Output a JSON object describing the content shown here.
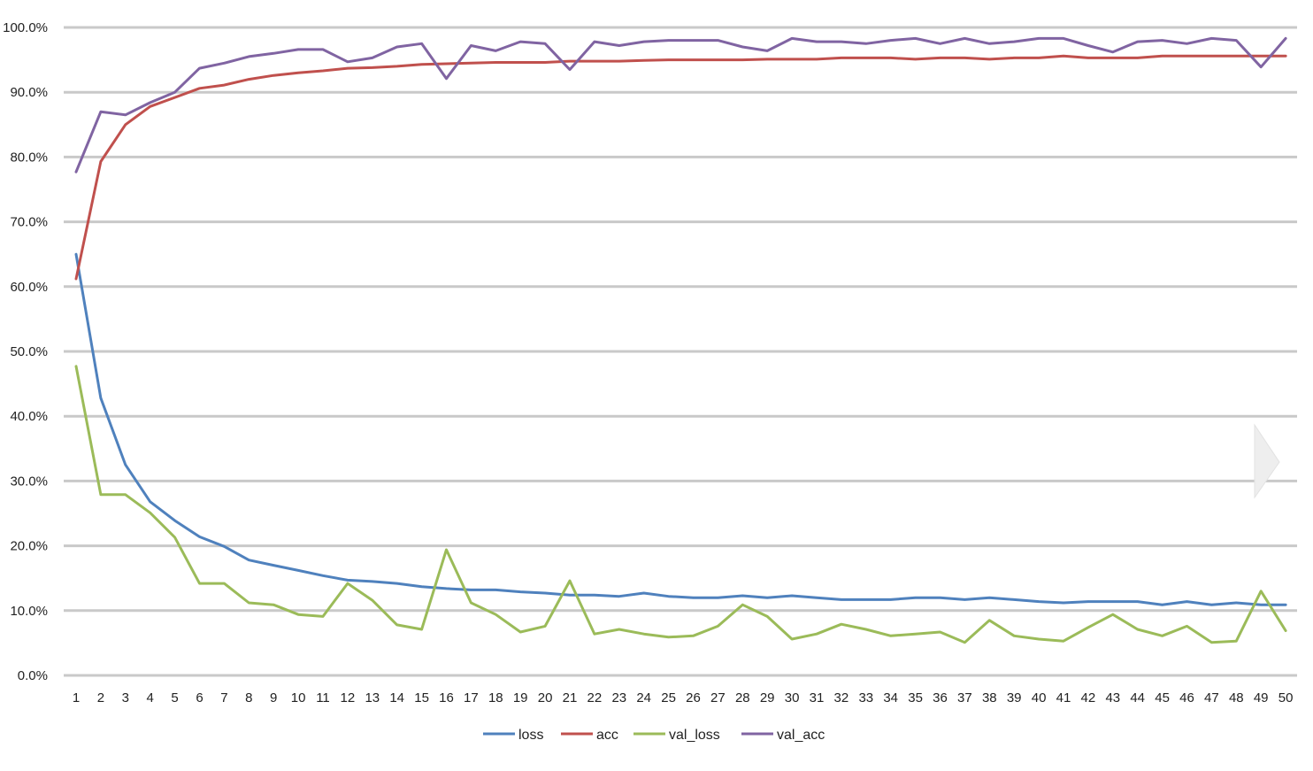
{
  "chart_data": {
    "type": "line",
    "title": "",
    "xlabel": "",
    "ylabel": "",
    "x": [
      1,
      2,
      3,
      4,
      5,
      6,
      7,
      8,
      9,
      10,
      11,
      12,
      13,
      14,
      15,
      16,
      17,
      18,
      19,
      20,
      21,
      22,
      23,
      24,
      25,
      26,
      27,
      28,
      29,
      30,
      31,
      32,
      33,
      34,
      35,
      36,
      37,
      38,
      39,
      40,
      41,
      42,
      43,
      44,
      45,
      46,
      47,
      48,
      49,
      50
    ],
    "ylim": [
      0,
      100
    ],
    "y_ticks": [
      0,
      10,
      20,
      30,
      40,
      50,
      60,
      70,
      80,
      90,
      100
    ],
    "y_tick_labels": [
      "0.0%",
      "10.0%",
      "20.0%",
      "30.0%",
      "40.0%",
      "50.0%",
      "60.0%",
      "70.0%",
      "80.0%",
      "90.0%",
      "100.0%"
    ],
    "grid": true,
    "legend_position": "bottom",
    "series": [
      {
        "name": "loss",
        "color": "#4f81bd",
        "values": [
          65.0,
          42.8,
          32.5,
          26.8,
          23.9,
          21.4,
          19.9,
          17.8,
          17.0,
          16.2,
          15.4,
          14.7,
          14.5,
          14.2,
          13.7,
          13.4,
          13.2,
          13.2,
          12.9,
          12.7,
          12.4,
          12.4,
          12.2,
          12.7,
          12.2,
          12.0,
          12.0,
          12.3,
          12.0,
          12.3,
          12.0,
          11.7,
          11.7,
          11.7,
          12.0,
          12.0,
          11.7,
          12.0,
          11.7,
          11.4,
          11.2,
          11.4,
          11.4,
          11.4,
          10.9,
          11.4,
          10.9,
          11.2,
          10.9,
          10.9
        ]
      },
      {
        "name": "acc",
        "color": "#c0504d",
        "values": [
          61.2,
          79.3,
          85.0,
          87.8,
          89.2,
          90.6,
          91.1,
          92.0,
          92.6,
          93.0,
          93.3,
          93.7,
          93.8,
          94.0,
          94.3,
          94.4,
          94.5,
          94.6,
          94.6,
          94.6,
          94.8,
          94.8,
          94.8,
          94.9,
          95.0,
          95.0,
          95.0,
          95.0,
          95.1,
          95.1,
          95.1,
          95.3,
          95.3,
          95.3,
          95.1,
          95.3,
          95.3,
          95.1,
          95.3,
          95.3,
          95.6,
          95.3,
          95.3,
          95.3,
          95.6,
          95.6,
          95.6,
          95.6,
          95.6,
          95.6
        ]
      },
      {
        "name": "val_loss",
        "color": "#9bbb59",
        "values": [
          47.7,
          27.9,
          27.9,
          25.1,
          21.3,
          14.2,
          14.2,
          11.2,
          10.9,
          9.4,
          9.1,
          14.2,
          11.6,
          7.8,
          7.1,
          19.4,
          11.2,
          9.4,
          6.7,
          7.6,
          14.6,
          6.4,
          7.1,
          6.4,
          5.9,
          6.1,
          7.6,
          10.9,
          9.1,
          5.6,
          6.4,
          7.9,
          7.1,
          6.1,
          6.4,
          6.7,
          5.1,
          8.5,
          6.1,
          5.6,
          5.3,
          7.4,
          9.4,
          7.1,
          6.1,
          7.6,
          5.1,
          5.3,
          13.0,
          6.9
        ]
      },
      {
        "name": "val_acc",
        "color": "#8064a2",
        "values": [
          77.7,
          87.0,
          86.5,
          88.4,
          90.0,
          93.7,
          94.5,
          95.5,
          96.0,
          96.6,
          96.6,
          94.7,
          95.3,
          97.0,
          97.5,
          92.1,
          97.2,
          96.4,
          97.8,
          97.5,
          93.5,
          97.8,
          97.2,
          97.8,
          98.0,
          98.0,
          98.0,
          97.0,
          96.4,
          98.3,
          97.8,
          97.8,
          97.5,
          98.0,
          98.3,
          97.5,
          98.3,
          97.5,
          97.8,
          98.3,
          98.3,
          97.2,
          96.2,
          97.8,
          98.0,
          97.5,
          98.3,
          98.0,
          93.9,
          98.3
        ]
      }
    ]
  }
}
